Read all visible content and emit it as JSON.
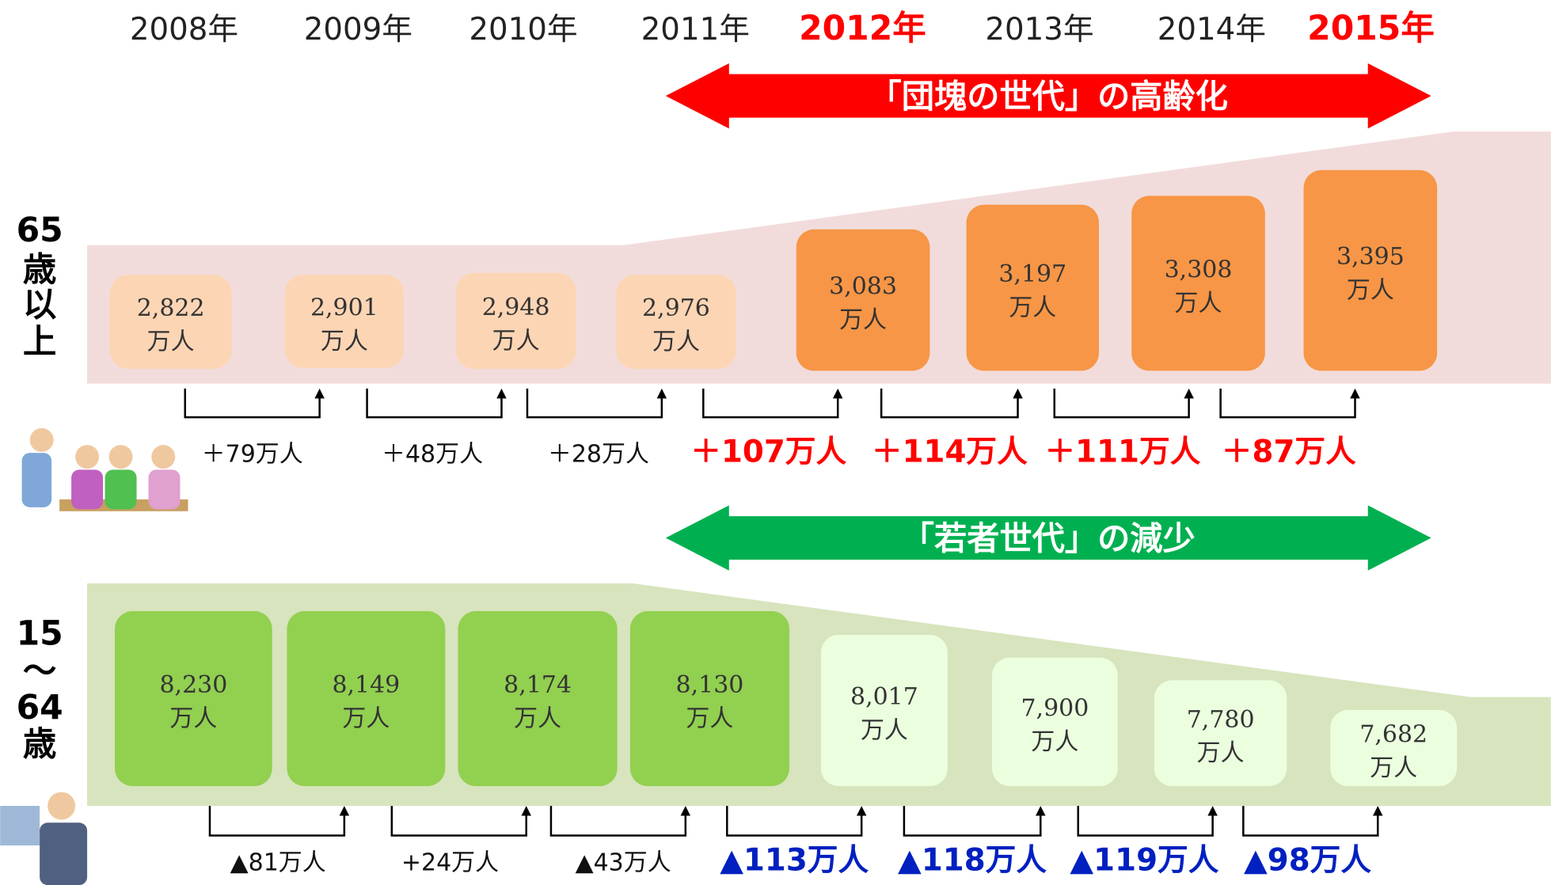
{
  "years": [
    {
      "text": "2008年",
      "color": "#222222",
      "bold": false
    },
    {
      "text": "2009年",
      "color": "#222222",
      "bold": false
    },
    {
      "text": "2010年",
      "color": "#222222",
      "bold": false
    },
    {
      "text": "2011年",
      "color": "#222222",
      "bold": false
    },
    {
      "text": "2012年",
      "color": "#ff0000",
      "bold": true
    },
    {
      "text": "2013年",
      "color": "#222222",
      "bold": false
    },
    {
      "text": "2014年",
      "color": "#222222",
      "bold": false
    },
    {
      "text": "2015年",
      "color": "#ff0000",
      "bold": true
    }
  ],
  "rows": [
    {
      "label": [
        "65",
        "歳",
        "以",
        "上"
      ],
      "banner": "「団塊の世代」の高齢化",
      "banner_color": "#ff0000",
      "band_color": "#f2dcdb",
      "boxes": [
        {
          "value": "2,822",
          "unit": "万人",
          "color": "#fcd5b4"
        },
        {
          "value": "2,901",
          "unit": "万人",
          "color": "#fcd5b4"
        },
        {
          "value": "2,948",
          "unit": "万人",
          "color": "#fcd5b4"
        },
        {
          "value": "2,976",
          "unit": "万人",
          "color": "#fcd5b4"
        },
        {
          "value": "3,083",
          "unit": "万人",
          "color": "#f79646"
        },
        {
          "value": "3,197",
          "unit": "万人",
          "color": "#f79646"
        },
        {
          "value": "3,308",
          "unit": "万人",
          "color": "#f79646"
        },
        {
          "value": "3,395",
          "unit": "万人",
          "color": "#f79646"
        }
      ],
      "changes": [
        {
          "text": "＋79万人",
          "color": "#111111",
          "bold": false
        },
        {
          "text": "＋48万人",
          "color": "#111111",
          "bold": false
        },
        {
          "text": "＋28万人",
          "color": "#111111",
          "bold": false
        },
        {
          "text": "＋107万人",
          "color": "#ff0000",
          "bold": true
        },
        {
          "text": "＋114万人",
          "color": "#ff0000",
          "bold": true
        },
        {
          "text": "＋111万人",
          "color": "#ff0000",
          "bold": true
        },
        {
          "text": "＋87万人",
          "color": "#ff0000",
          "bold": true
        }
      ]
    },
    {
      "label": [
        "15",
        "〜",
        "64",
        "歳"
      ],
      "banner": "「若者世代」の減少",
      "banner_color": "#00b050",
      "band_color": "#d7e4bd",
      "boxes": [
        {
          "value": "8,230",
          "unit": "万人",
          "color": "#92d050"
        },
        {
          "value": "8,149",
          "unit": "万人",
          "color": "#92d050"
        },
        {
          "value": "8,174",
          "unit": "万人",
          "color": "#92d050"
        },
        {
          "value": "8,130",
          "unit": "万人",
          "color": "#92d050"
        },
        {
          "value": "8,017",
          "unit": "万人",
          "color": "#ebffdf"
        },
        {
          "value": "7,900",
          "unit": "万人",
          "color": "#ebffdf"
        },
        {
          "value": "7,780",
          "unit": "万人",
          "color": "#ebffdf"
        },
        {
          "value": "7,682",
          "unit": "万人",
          "color": "#ebffdf"
        }
      ],
      "changes": [
        {
          "text": "▲81万人",
          "color": "#111111",
          "bold": false
        },
        {
          "text": "+24万人",
          "color": "#111111",
          "bold": false
        },
        {
          "text": "▲43万人",
          "color": "#111111",
          "bold": false
        },
        {
          "text": "▲113万人",
          "color": "#0020c0",
          "bold": true
        },
        {
          "text": "▲118万人",
          "color": "#0020c0",
          "bold": true
        },
        {
          "text": "▲119万人",
          "color": "#0020c0",
          "bold": true
        },
        {
          "text": "▲98万人",
          "color": "#0020c0",
          "bold": true
        }
      ]
    }
  ]
}
